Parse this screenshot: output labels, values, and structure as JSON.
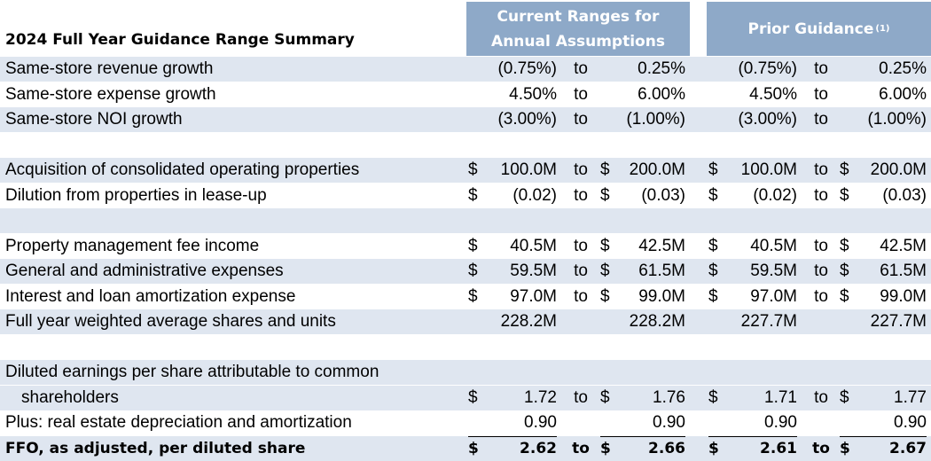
{
  "title": "2024 Full Year Guidance Range Summary",
  "headers": {
    "current_line1": "Current Ranges for",
    "current_line2": "Annual Assumptions",
    "prior": "Prior Guidance",
    "prior_note": "(1)"
  },
  "rows": [
    {
      "label": "Same-store revenue growth",
      "shade": true,
      "c1d": "",
      "c1v": "(0.75%)",
      "c1t": "to",
      "c2d": "",
      "c2v": "0.25%",
      "c3d": "",
      "c3v": "(0.75%)",
      "c3t": "to",
      "c4d": "",
      "c4v": "0.25%"
    },
    {
      "label": "Same-store expense growth",
      "shade": false,
      "c1d": "",
      "c1v": "4.50%",
      "c1t": "to",
      "c2d": "",
      "c2v": "6.00%",
      "c3d": "",
      "c3v": "4.50%",
      "c3t": "to",
      "c4d": "",
      "c4v": "6.00%"
    },
    {
      "label": "Same-store NOI growth",
      "shade": true,
      "c1d": "",
      "c1v": "(3.00%)",
      "c1t": "to",
      "c2d": "",
      "c2v": "(1.00%)",
      "c3d": "",
      "c3v": "(3.00%)",
      "c3t": "to",
      "c4d": "",
      "c4v": "(1.00%)"
    },
    {
      "blank": true,
      "shade": false
    },
    {
      "label": "Acquisition of consolidated operating properties",
      "shade": true,
      "c1d": "$",
      "c1v": "100.0M",
      "c1t": "to",
      "c2d": "$",
      "c2v": "200.0M",
      "c3d": "$",
      "c3v": "100.0M",
      "c3t": "to",
      "c4d": "$",
      "c4v": "200.0M"
    },
    {
      "label": "Dilution from properties in lease-up",
      "shade": false,
      "c1d": "$",
      "c1v": "(0.02)",
      "c1t": "to",
      "c2d": "$",
      "c2v": "(0.03)",
      "c3d": "$",
      "c3v": "(0.02)",
      "c3t": "to",
      "c4d": "$",
      "c4v": "(0.03)"
    },
    {
      "blank": true,
      "shade": true
    },
    {
      "label": "Property management fee income",
      "shade": false,
      "c1d": "$",
      "c1v": "40.5M",
      "c1t": "to",
      "c2d": "$",
      "c2v": "42.5M",
      "c3d": "$",
      "c3v": "40.5M",
      "c3t": "to",
      "c4d": "$",
      "c4v": "42.5M"
    },
    {
      "label": "General and administrative expenses",
      "shade": true,
      "c1d": "$",
      "c1v": "59.5M",
      "c1t": "to",
      "c2d": "$",
      "c2v": "61.5M",
      "c3d": "$",
      "c3v": "59.5M",
      "c3t": "to",
      "c4d": "$",
      "c4v": "61.5M"
    },
    {
      "label": "Interest and loan amortization expense",
      "shade": false,
      "c1d": "$",
      "c1v": "97.0M",
      "c1t": "to",
      "c2d": "$",
      "c2v": "99.0M",
      "c3d": "$",
      "c3v": "97.0M",
      "c3t": "to",
      "c4d": "$",
      "c4v": "99.0M"
    },
    {
      "label": "Full year weighted average shares and units",
      "shade": true,
      "c1d": "",
      "c1v": "228.2M",
      "c1t": "",
      "c2d": "",
      "c2v": "228.2M",
      "c3d": "",
      "c3v": "227.7M",
      "c3t": "",
      "c4d": "",
      "c4v": "227.7M"
    },
    {
      "blank": true,
      "shade": false
    },
    {
      "label": "Diluted earnings per share attributable to common",
      "shade": true,
      "label_only": true
    },
    {
      "label": "shareholders",
      "shade": true,
      "indent": true,
      "c1d": "$",
      "c1v": "1.72",
      "c1t": "to",
      "c2d": "$",
      "c2v": "1.76",
      "c3d": "$",
      "c3v": "1.71",
      "c3t": "to",
      "c4d": "$",
      "c4v": "1.77"
    },
    {
      "label": "Plus: real estate depreciation and amortization",
      "shade": false,
      "c1d": "",
      "c1v": "0.90",
      "c1t": "",
      "c2d": "",
      "c2v": "0.90",
      "c3d": "",
      "c3v": "0.90",
      "c3t": "",
      "c4d": "",
      "c4v": "0.90"
    },
    {
      "label": "FFO, as adjusted, per diluted share",
      "shade": true,
      "bold": true,
      "c1d": "$",
      "c1v": "2.62",
      "c1t": "to",
      "c2d": "$",
      "c2v": "2.66",
      "c3d": "$",
      "c3v": "2.61",
      "c3t": "to",
      "c4d": "$",
      "c4v": "2.67"
    }
  ],
  "colors": {
    "header_bg": "#8ea9c8",
    "row_shade": "#dfe6f0"
  }
}
